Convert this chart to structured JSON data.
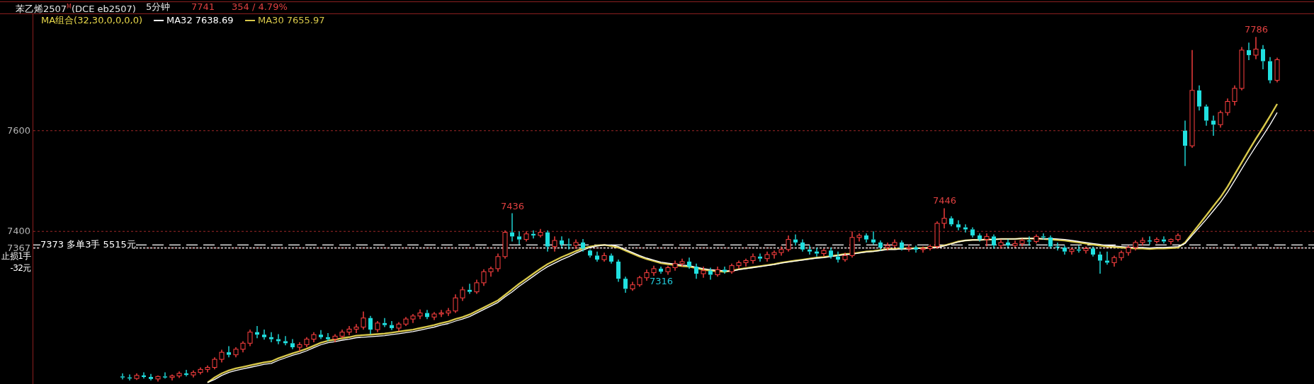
{
  "chart_data": {
    "type": "candlestick",
    "title": "苯乙烯2507$^{M}$(DCE eb2507)",
    "subtitle": "5分钟",
    "annotations": [
      "7741",
      "354 / 4.79%",
      "MA组合(32,30,0,0,0,0)",
      {
        "text": "7436",
        "y": 7436
      },
      {
        "text": "7446",
        "y": 7446
      },
      {
        "text": "7316",
        "y": 7316
      },
      {
        "text": "7786",
        "y": 7786
      }
    ],
    "categories": [
      null,
      null,
      null,
      null,
      null,
      null,
      null,
      null,
      null,
      null,
      null,
      null,
      null,
      null,
      null,
      null,
      null,
      null,
      null,
      null,
      null,
      null,
      null,
      null,
      null,
      null,
      null,
      null,
      null,
      null,
      null,
      null,
      null,
      null,
      null,
      null,
      null,
      null,
      null,
      null,
      null,
      null,
      null,
      null,
      null,
      null,
      null,
      null,
      null,
      null,
      null,
      null,
      null,
      null,
      null,
      null,
      null,
      null,
      null,
      null,
      null,
      null,
      null,
      null,
      null,
      null,
      null,
      null,
      null,
      null,
      null,
      null,
      null,
      null,
      null,
      null,
      null,
      null,
      null,
      null,
      null,
      null,
      null,
      null,
      null,
      null,
      null,
      null,
      null,
      null,
      null,
      null,
      null,
      null,
      null,
      null,
      null,
      null,
      null,
      null,
      null,
      null,
      null,
      null,
      null,
      null,
      null,
      null,
      null,
      null,
      null,
      null,
      null,
      null,
      null,
      null,
      null,
      null,
      null,
      null,
      null,
      null,
      null,
      null,
      null,
      null,
      null,
      null,
      null,
      null,
      null,
      null,
      null,
      null,
      null,
      null,
      null,
      null,
      null,
      null,
      null,
      null,
      null,
      null,
      null,
      null,
      null,
      null,
      null,
      null,
      null,
      null,
      null,
      null,
      null,
      null,
      null,
      null,
      null,
      null,
      null,
      null,
      null,
      null
    ],
    "ohlc": [
      [
        7112,
        7118,
        7106,
        7110
      ],
      [
        7110,
        7116,
        7104,
        7108
      ],
      [
        7108,
        7118,
        7105,
        7114
      ],
      [
        7114,
        7120,
        7108,
        7111
      ],
      [
        7111,
        7117,
        7104,
        7107
      ],
      [
        7107,
        7114,
        7102,
        7112
      ],
      [
        7112,
        7120,
        7108,
        7110
      ],
      [
        7110,
        7116,
        7104,
        7113
      ],
      [
        7113,
        7122,
        7109,
        7118
      ],
      [
        7118,
        7125,
        7112,
        7115
      ],
      [
        7115,
        7124,
        7110,
        7120
      ],
      [
        7120,
        7130,
        7116,
        7126
      ],
      [
        7126,
        7134,
        7120,
        7130
      ],
      [
        7130,
        7150,
        7126,
        7146
      ],
      [
        7146,
        7165,
        7140,
        7160
      ],
      [
        7160,
        7172,
        7150,
        7155
      ],
      [
        7155,
        7170,
        7150,
        7166
      ],
      [
        7166,
        7182,
        7160,
        7178
      ],
      [
        7178,
        7205,
        7172,
        7200
      ],
      [
        7200,
        7212,
        7188,
        7195
      ],
      [
        7195,
        7205,
        7185,
        7190
      ],
      [
        7190,
        7200,
        7180,
        7186
      ],
      [
        7186,
        7196,
        7176,
        7182
      ],
      [
        7182,
        7192,
        7174,
        7178
      ],
      [
        7178,
        7186,
        7166,
        7170
      ],
      [
        7170,
        7180,
        7162,
        7175
      ],
      [
        7175,
        7190,
        7170,
        7186
      ],
      [
        7186,
        7200,
        7180,
        7195
      ],
      [
        7195,
        7204,
        7186,
        7190
      ],
      [
        7190,
        7198,
        7182,
        7186
      ],
      [
        7186,
        7196,
        7180,
        7192
      ],
      [
        7192,
        7205,
        7188,
        7200
      ],
      [
        7200,
        7212,
        7194,
        7206
      ],
      [
        7206,
        7216,
        7198,
        7210
      ],
      [
        7210,
        7241,
        7205,
        7228
      ],
      [
        7228,
        7232,
        7196,
        7205
      ],
      [
        7205,
        7222,
        7200,
        7218
      ],
      [
        7218,
        7228,
        7210,
        7214
      ],
      [
        7214,
        7222,
        7204,
        7208
      ],
      [
        7208,
        7220,
        7202,
        7216
      ],
      [
        7216,
        7230,
        7212,
        7226
      ],
      [
        7226,
        7236,
        7218,
        7232
      ],
      [
        7232,
        7245,
        7226,
        7238
      ],
      [
        7238,
        7244,
        7226,
        7230
      ],
      [
        7230,
        7240,
        7224,
        7236
      ],
      [
        7236,
        7244,
        7230,
        7238
      ],
      [
        7238,
        7248,
        7232,
        7242
      ],
      [
        7242,
        7275,
        7238,
        7268
      ],
      [
        7268,
        7290,
        7262,
        7284
      ],
      [
        7284,
        7296,
        7276,
        7280
      ],
      [
        7280,
        7304,
        7276,
        7298
      ],
      [
        7298,
        7325,
        7292,
        7320
      ],
      [
        7320,
        7330,
        7310,
        7326
      ],
      [
        7326,
        7356,
        7320,
        7350
      ],
      [
        7350,
        7402,
        7346,
        7398
      ],
      [
        7398,
        7436,
        7380,
        7390
      ],
      [
        7390,
        7400,
        7374,
        7384
      ],
      [
        7384,
        7400,
        7380,
        7395
      ],
      [
        7395,
        7402,
        7386,
        7392
      ],
      [
        7392,
        7405,
        7388,
        7398
      ],
      [
        7398,
        7402,
        7360,
        7370
      ],
      [
        7370,
        7390,
        7360,
        7382
      ],
      [
        7382,
        7390,
        7368,
        7374
      ],
      [
        7374,
        7386,
        7364,
        7372
      ],
      [
        7372,
        7384,
        7366,
        7378
      ],
      [
        7378,
        7385,
        7360,
        7366
      ],
      [
        7362,
        7364,
        7348,
        7352
      ],
      [
        7352,
        7360,
        7340,
        7344
      ],
      [
        7344,
        7358,
        7340,
        7352
      ],
      [
        7352,
        7356,
        7336,
        7340
      ],
      [
        7340,
        7344,
        7300,
        7306
      ],
      [
        7306,
        7310,
        7278,
        7286
      ],
      [
        7286,
        7300,
        7282,
        7294
      ],
      [
        7294,
        7312,
        7290,
        7308
      ],
      [
        7308,
        7324,
        7302,
        7318
      ],
      [
        7318,
        7332,
        7312,
        7326
      ],
      [
        7326,
        7330,
        7316,
        7320
      ],
      [
        7320,
        7332,
        7314,
        7328
      ],
      [
        7328,
        7342,
        7322,
        7336
      ],
      [
        7336,
        7346,
        7330,
        7340
      ],
      [
        7340,
        7348,
        7326,
        7330
      ],
      [
        7330,
        7336,
        7306,
        7316
      ],
      [
        7316,
        7330,
        7308,
        7322
      ],
      [
        7322,
        7328,
        7304,
        7314
      ],
      [
        7314,
        7330,
        7310,
        7324
      ],
      [
        7324,
        7330,
        7316,
        7320
      ],
      [
        7320,
        7336,
        7316,
        7332
      ],
      [
        7332,
        7342,
        7326,
        7338
      ],
      [
        7338,
        7346,
        7330,
        7342
      ],
      [
        7342,
        7356,
        7336,
        7350
      ],
      [
        7350,
        7356,
        7340,
        7346
      ],
      [
        7346,
        7360,
        7340,
        7354
      ],
      [
        7354,
        7362,
        7346,
        7358
      ],
      [
        7358,
        7370,
        7352,
        7364
      ],
      [
        7364,
        7392,
        7360,
        7384
      ],
      [
        7384,
        7394,
        7372,
        7378
      ],
      [
        7378,
        7384,
        7360,
        7364
      ],
      [
        7364,
        7372,
        7354,
        7360
      ],
      [
        7360,
        7368,
        7350,
        7356
      ],
      [
        7356,
        7366,
        7350,
        7362
      ],
      [
        7362,
        7368,
        7346,
        7350
      ],
      [
        7350,
        7360,
        7338,
        7344
      ],
      [
        7344,
        7358,
        7340,
        7352
      ],
      [
        7352,
        7400,
        7348,
        7388
      ],
      [
        7388,
        7396,
        7380,
        7392
      ],
      [
        7392,
        7396,
        7378,
        7384
      ],
      [
        7384,
        7400,
        7374,
        7378
      ],
      [
        7378,
        7382,
        7362,
        7368
      ],
      [
        7368,
        7378,
        7362,
        7372
      ],
      [
        7372,
        7384,
        7368,
        7378
      ],
      [
        7378,
        7382,
        7362,
        7366
      ],
      [
        7366,
        7374,
        7360,
        7368
      ],
      [
        7368,
        7372,
        7358,
        7364
      ],
      [
        7364,
        7370,
        7358,
        7366
      ],
      [
        7366,
        7374,
        7362,
        7370
      ],
      [
        7370,
        7420,
        7366,
        7416
      ],
      [
        7416,
        7446,
        7406,
        7426
      ],
      [
        7426,
        7430,
        7410,
        7414
      ],
      [
        7414,
        7422,
        7402,
        7408
      ],
      [
        7408,
        7414,
        7398,
        7404
      ],
      [
        7404,
        7408,
        7388,
        7392
      ],
      [
        7392,
        7396,
        7380,
        7384
      ],
      [
        7384,
        7396,
        7370,
        7390
      ],
      [
        7390,
        7394,
        7366,
        7372
      ],
      [
        7372,
        7384,
        7366,
        7378
      ],
      [
        7378,
        7384,
        7368,
        7372
      ],
      [
        7372,
        7382,
        7368,
        7376
      ],
      [
        7376,
        7386,
        7370,
        7382
      ],
      [
        7382,
        7390,
        7372,
        7380
      ],
      [
        7380,
        7394,
        7376,
        7390
      ],
      [
        7390,
        7396,
        7384,
        7388
      ],
      [
        7388,
        7392,
        7366,
        7370
      ],
      [
        7370,
        7378,
        7362,
        7368
      ],
      [
        7368,
        7372,
        7354,
        7360
      ],
      [
        7360,
        7368,
        7354,
        7364
      ],
      [
        7364,
        7372,
        7358,
        7362
      ],
      [
        7362,
        7370,
        7356,
        7366
      ],
      [
        7366,
        7370,
        7350,
        7354
      ],
      [
        7354,
        7360,
        7316,
        7342
      ],
      [
        7342,
        7360,
        7334,
        7338
      ],
      [
        7338,
        7352,
        7330,
        7348
      ],
      [
        7348,
        7362,
        7342,
        7358
      ],
      [
        7358,
        7372,
        7352,
        7368
      ],
      [
        7368,
        7382,
        7362,
        7378
      ],
      [
        7378,
        7388,
        7372,
        7382
      ],
      [
        7382,
        7390,
        7374,
        7380
      ],
      [
        7380,
        7388,
        7376,
        7384
      ],
      [
        7384,
        7390,
        7376,
        7380
      ],
      [
        7380,
        7386,
        7374,
        7384
      ],
      [
        7384,
        7396,
        7380,
        7392
      ],
      [
        7600,
        7620,
        7530,
        7570
      ],
      [
        7570,
        7760,
        7566,
        7680
      ],
      [
        7680,
        7690,
        7640,
        7648
      ],
      [
        7648,
        7652,
        7610,
        7620
      ],
      [
        7620,
        7630,
        7590,
        7612
      ],
      [
        7612,
        7640,
        7606,
        7636
      ],
      [
        7636,
        7664,
        7630,
        7658
      ],
      [
        7658,
        7690,
        7650,
        7684
      ],
      [
        7684,
        7766,
        7680,
        7760
      ],
      [
        7760,
        7775,
        7740,
        7750
      ],
      [
        7750,
        7786,
        7742,
        7762
      ],
      [
        7762,
        7770,
        7722,
        7738
      ],
      [
        7738,
        7746,
        7694,
        7700
      ],
      [
        7700,
        7745,
        7696,
        7741
      ]
    ],
    "series": [
      {
        "name": "MA32 7638.69",
        "type": "line",
        "color": "#ffffff",
        "values": [
          null,
          null,
          null,
          null,
          null,
          null,
          null,
          null,
          null,
          null,
          null,
          null,
          7100,
          7106,
          7114,
          7120,
          7124,
          7127,
          7130,
          7133,
          7136,
          7138,
          7144,
          7149,
          7154,
          7158,
          7163,
          7169,
          7175,
          7179,
          7181,
          7184,
          7186,
          7189,
          7190,
          7191,
          7192,
          7193,
          7195,
          7197,
          7199,
          7201,
          7204,
          7207,
          7210,
          7214,
          7217,
          7222,
          7226,
          7231,
          7238,
          7245,
          7252,
          7259,
          7270,
          7280,
          7291,
          7301,
          7311,
          7321,
          7330,
          7337,
          7344,
          7350,
          7357,
          7363,
          7368,
          7371,
          7373,
          7373,
          7370,
          7364,
          7358,
          7352,
          7347,
          7343,
          7339,
          7337,
          7335,
          7333,
          7332,
          7329,
          7326,
          7324,
          7323,
          7322,
          7321,
          7324,
          7326,
          7328,
          7330,
          7332,
          7334,
          7337,
          7339,
          7341,
          7343,
          7345,
          7347,
          7348,
          7350,
          7352,
          7354,
          7355,
          7357,
          7359,
          7360,
          7362,
          7364,
          7364,
          7365,
          7365,
          7366,
          7366,
          7367,
          7368,
          7371,
          7375,
          7379,
          7382,
          7383,
          7383,
          7384,
          7384,
          7385,
          7385,
          7385,
          7386,
          7386,
          7386,
          7385,
          7386,
          7385,
          7384,
          7382,
          7380,
          7378,
          7376,
          7374,
          7372,
          7371,
          7370,
          7369,
          7368,
          7368,
          7367,
          7368,
          7368,
          7369,
          7370,
          7376,
          7392,
          7408,
          7424,
          7441,
          7458,
          7478,
          7501,
          7524,
          7547,
          7569,
          7590,
          7612,
          7636
        ]
      },
      {
        "name": "MA30 7655.97",
        "type": "line",
        "color": "#d8c84a",
        "values": [
          null,
          null,
          null,
          null,
          null,
          null,
          null,
          null,
          null,
          null,
          null,
          null,
          7100,
          7110,
          7118,
          7124,
          7128,
          7131,
          7134,
          7137,
          7140,
          7142,
          7148,
          7153,
          7158,
          7162,
          7167,
          7173,
          7179,
          7183,
          7185,
          7188,
          7190,
          7193,
          7194,
          7195,
          7196,
          7197,
          7199,
          7201,
          7203,
          7205,
          7208,
          7211,
          7214,
          7218,
          7221,
          7226,
          7230,
          7235,
          7242,
          7249,
          7256,
          7263,
          7274,
          7285,
          7296,
          7306,
          7316,
          7326,
          7335,
          7342,
          7349,
          7355,
          7361,
          7366,
          7370,
          7372,
          7373,
          7371,
          7368,
          7362,
          7356,
          7350,
          7345,
          7341,
          7337,
          7335,
          7333,
          7331,
          7330,
          7327,
          7324,
          7322,
          7321,
          7320,
          7322,
          7325,
          7327,
          7329,
          7331,
          7333,
          7335,
          7338,
          7340,
          7342,
          7344,
          7346,
          7348,
          7349,
          7351,
          7353,
          7355,
          7356,
          7358,
          7360,
          7361,
          7363,
          7365,
          7365,
          7366,
          7366,
          7367,
          7367,
          7368,
          7369,
          7372,
          7376,
          7380,
          7382,
          7383,
          7383,
          7384,
          7384,
          7385,
          7385,
          7385,
          7386,
          7386,
          7386,
          7385,
          7384,
          7383,
          7382,
          7380,
          7378,
          7376,
          7374,
          7372,
          7370,
          7369,
          7368,
          7367,
          7366,
          7366,
          7365,
          7366,
          7366,
          7367,
          7368,
          7378,
          7396,
          7414,
          7432,
          7450,
          7468,
          7489,
          7513,
          7537,
          7561,
          7584,
          7606,
          7629,
          7653
        ]
      }
    ],
    "ylim": [
      7097,
      7830
    ],
    "yticks": [
      7367,
      7400,
      7600
    ],
    "grid": "y",
    "legend": "top left",
    "ref_lines": [
      {
        "axis": "y",
        "value": 7373,
        "label": "7373 多单3手 5515元",
        "color": "#ffffff",
        "line_style": "dashed"
      },
      {
        "axis": "y",
        "value": 7367,
        "label": "止损1手 -32元",
        "color": "#ffffff",
        "line_style": "dotted"
      }
    ]
  }
}
